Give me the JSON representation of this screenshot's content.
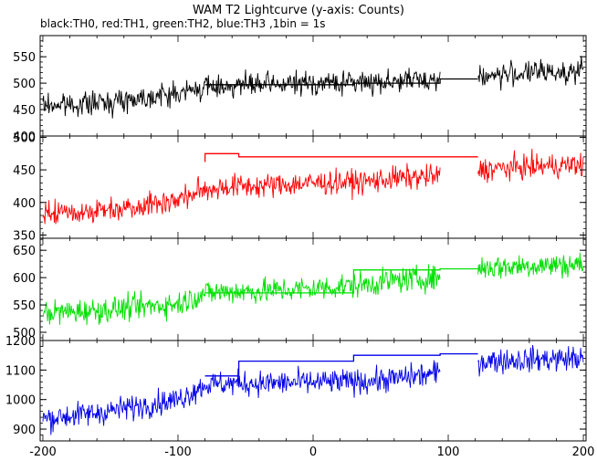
{
  "title": "WAM T2 Lightcurve (y-axis: Counts)",
  "subtitle": "black:TH0, red:TH1, green:TH2, blue:TH3 ,1bin = 1s",
  "chart_data": {
    "type": "line",
    "title": "WAM T2 Lightcurve (y-axis: Counts)",
    "subtitle": "black:TH0, red:TH1, green:TH2, blue:TH3 ,1bin = 1s",
    "xlim": [
      -202,
      202
    ],
    "x_ticks": [
      -200,
      -100,
      0,
      100,
      200
    ],
    "x_tick_labels": [
      "-200",
      "-100",
      "0",
      "100",
      "200"
    ],
    "data_gap": [
      94,
      122
    ],
    "panels": [
      {
        "series": "TH0",
        "color": "#000000",
        "ylim": [
          400,
          590
        ],
        "y_ticks": [
          400,
          450,
          500,
          550
        ],
        "y_tick_labels": [
          "400",
          "450",
          "500",
          "550"
        ],
        "trend": [
          [
            -200,
            458
          ],
          [
            -160,
            462
          ],
          [
            -120,
            475
          ],
          [
            -100,
            480
          ],
          [
            -80,
            492
          ],
          [
            -60,
            496
          ],
          [
            -40,
            496
          ],
          [
            0,
            500
          ],
          [
            40,
            502
          ],
          [
            60,
            504
          ],
          [
            94,
            508
          ],
          [
            122,
            512
          ],
          [
            160,
            520
          ],
          [
            200,
            522
          ]
        ],
        "noise": 28,
        "overlay_steps": [
          [
            -80,
            497
          ],
          [
            0,
            497
          ],
          [
            30,
            497
          ],
          [
            30,
            500
          ],
          [
            94,
            500
          ],
          [
            94,
            508
          ],
          [
            122,
            508
          ]
        ]
      },
      {
        "series": "TH1",
        "color": "#ff0000",
        "ylim": [
          345,
          502
        ],
        "y_ticks": [
          350,
          400,
          450,
          500
        ],
        "y_tick_labels": [
          "350",
          "400",
          "450",
          "500"
        ],
        "trend": [
          [
            -200,
            383
          ],
          [
            -160,
            387
          ],
          [
            -120,
            398
          ],
          [
            -100,
            404
          ],
          [
            -80,
            420
          ],
          [
            -60,
            425
          ],
          [
            -40,
            425
          ],
          [
            0,
            430
          ],
          [
            40,
            432
          ],
          [
            60,
            437
          ],
          [
            94,
            440
          ],
          [
            122,
            450
          ],
          [
            160,
            455
          ],
          [
            200,
            458
          ]
        ],
        "noise": 24,
        "overlay_steps": [
          [
            -80,
            462
          ],
          [
            -80,
            475
          ],
          [
            -55,
            475
          ],
          [
            -55,
            470
          ],
          [
            122,
            470
          ]
        ]
      },
      {
        "series": "TH2",
        "color": "#00e000",
        "ylim": [
          485,
          672
        ],
        "y_ticks": [
          500,
          550,
          600,
          650
        ],
        "y_tick_labels": [
          "500",
          "550",
          "600",
          "650"
        ],
        "trend": [
          [
            -200,
            535
          ],
          [
            -160,
            540
          ],
          [
            -120,
            548
          ],
          [
            -100,
            552
          ],
          [
            -80,
            572
          ],
          [
            -60,
            575
          ],
          [
            -40,
            575
          ],
          [
            0,
            580
          ],
          [
            40,
            588
          ],
          [
            60,
            595
          ],
          [
            94,
            600
          ],
          [
            122,
            618
          ],
          [
            160,
            622
          ],
          [
            200,
            624
          ]
        ],
        "noise": 30,
        "overlay_steps": [
          [
            -80,
            572
          ],
          [
            30,
            572
          ],
          [
            30,
            614
          ],
          [
            94,
            614
          ],
          [
            94,
            616
          ],
          [
            122,
            616
          ]
        ]
      },
      {
        "series": "TH3",
        "color": "#0000e8",
        "ylim": [
          860,
          1200
        ],
        "y_ticks": [
          900,
          1000,
          1100,
          1200
        ],
        "y_tick_labels": [
          "900",
          "1000",
          "1100",
          "1200"
        ],
        "trend": [
          [
            -200,
            935
          ],
          [
            -160,
            955
          ],
          [
            -120,
            985
          ],
          [
            -100,
            1000
          ],
          [
            -80,
            1050
          ],
          [
            -60,
            1055
          ],
          [
            -40,
            1055
          ],
          [
            0,
            1058
          ],
          [
            40,
            1062
          ],
          [
            60,
            1070
          ],
          [
            94,
            1090
          ],
          [
            122,
            1130
          ],
          [
            160,
            1135
          ],
          [
            200,
            1140
          ]
        ],
        "noise": 55,
        "overlay_steps": [
          [
            -80,
            1080
          ],
          [
            -55,
            1080
          ],
          [
            -55,
            1130
          ],
          [
            30,
            1130
          ],
          [
            30,
            1150
          ],
          [
            94,
            1150
          ],
          [
            94,
            1155
          ],
          [
            122,
            1155
          ]
        ]
      }
    ]
  }
}
